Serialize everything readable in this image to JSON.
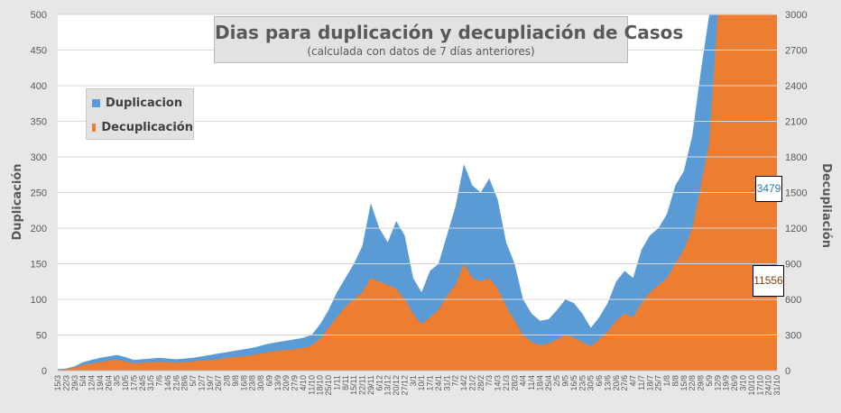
{
  "chart_data": {
    "type": "area",
    "title": "Dias para duplicación y decupliación de Casos",
    "subtitle": "(calculada con datos de 7 días anteriores)",
    "ylabel": "Duplicación",
    "y2label": "Decupliación",
    "ylim": [
      0,
      500
    ],
    "y2lim": [
      0,
      3000
    ],
    "yticks": [
      "0",
      "50",
      "100",
      "150",
      "200",
      "250",
      "300",
      "350",
      "400",
      "450",
      "500"
    ],
    "y2ticks": [
      "0",
      "300",
      "600",
      "900",
      "1200",
      "1500",
      "1800",
      "2100",
      "2400",
      "2700",
      "3000"
    ],
    "legend_position": "top-left",
    "categories": [
      "15/3",
      "22/3",
      "29/3",
      "5/4",
      "12/4",
      "19/4",
      "26/4",
      "3/5",
      "10/5",
      "17/5",
      "24/5",
      "31/5",
      "7/6",
      "14/6",
      "21/6",
      "28/6",
      "5/7",
      "12/7",
      "19/7",
      "26/7",
      "2/8",
      "9/8",
      "16/8",
      "23/8",
      "30/8",
      "6/9",
      "13/9",
      "20/9",
      "27/9",
      "4/10",
      "11/10",
      "18/10",
      "25/10",
      "1/11",
      "8/11",
      "15/11",
      "22/11",
      "29/11",
      "6/12",
      "13/12",
      "20/12",
      "27/12",
      "3/1",
      "10/1",
      "17/1",
      "24/1",
      "31/1",
      "7/2",
      "14/2",
      "21/2",
      "28/2",
      "7/3",
      "14/3",
      "21/3",
      "28/3",
      "4/4",
      "11/4",
      "18/4",
      "25/4",
      "2/5",
      "9/5",
      "16/5",
      "23/5",
      "30/5",
      "6/6",
      "13/6",
      "20/6",
      "27/6",
      "4/7",
      "11/7",
      "18/7",
      "25/7",
      "1/8",
      "8/8",
      "15/8",
      "22/8",
      "29/8",
      "5/9",
      "12/9",
      "19/9",
      "26/9",
      "3/10",
      "10/10",
      "17/10",
      "24/10",
      "31/10"
    ],
    "series": [
      {
        "name": "Duplicacion",
        "axis": "left",
        "color": "#5b9bd5",
        "values": [
          2,
          3,
          6,
          12,
          15,
          18,
          20,
          22,
          19,
          15,
          16,
          17,
          18,
          17,
          16,
          17,
          18,
          20,
          22,
          24,
          26,
          28,
          30,
          32,
          35,
          38,
          40,
          42,
          44,
          46,
          50,
          65,
          85,
          110,
          130,
          150,
          175,
          235,
          200,
          180,
          210,
          190,
          130,
          110,
          140,
          150,
          190,
          230,
          290,
          260,
          250,
          270,
          240,
          180,
          150,
          100,
          80,
          70,
          72,
          85,
          100,
          95,
          80,
          60,
          75,
          95,
          125,
          140,
          130,
          170,
          190,
          200,
          220,
          260,
          280,
          330,
          420,
          500,
          500,
          500,
          500,
          500,
          500,
          500,
          500,
          500
        ]
      },
      {
        "name": "Decuplicación",
        "axis": "right",
        "color": "#ed7d31",
        "values": [
          6,
          12,
          24,
          48,
          60,
          72,
          84,
          90,
          78,
          60,
          66,
          72,
          72,
          72,
          66,
          72,
          78,
          84,
          90,
          96,
          108,
          114,
          120,
          132,
          144,
          156,
          168,
          174,
          180,
          192,
          210,
          270,
          360,
          450,
          540,
          600,
          660,
          780,
          750,
          720,
          690,
          600,
          480,
          390,
          450,
          510,
          630,
          720,
          900,
          780,
          750,
          780,
          690,
          540,
          420,
          300,
          240,
          216,
          228,
          264,
          300,
          276,
          240,
          204,
          264,
          330,
          420,
          480,
          450,
          570,
          660,
          720,
          780,
          900,
          1020,
          1200,
          1560,
          1920,
          3000,
          3000,
          3000,
          3000,
          3000,
          3000,
          3000,
          3000
        ]
      }
    ],
    "callouts": [
      {
        "series": "Duplicacion",
        "text": "3479",
        "color": "#2e75b6"
      },
      {
        "series": "Decuplicación",
        "text": "11556",
        "color": "#843c0c"
      }
    ]
  }
}
